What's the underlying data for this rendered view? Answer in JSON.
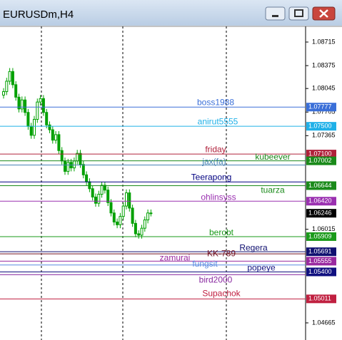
{
  "chart_data": {
    "type": "candlestick",
    "title": "EURUSDm,H4",
    "ylim": [
      1.04418,
      1.08941
    ],
    "yticks": [
      1.08715,
      1.08375,
      1.08045,
      1.07705,
      1.07365,
      1.06015,
      1.04665
    ],
    "up_color": "#00a000",
    "open": [
      1.0795,
      1.08,
      1.0815,
      1.0829,
      1.081,
      1.0792,
      1.0775,
      1.0788,
      1.077,
      1.075,
      1.0737,
      1.076,
      1.0785,
      1.079,
      1.077,
      1.0752,
      1.0745,
      1.073,
      1.0738,
      1.0715,
      1.07,
      1.0685,
      1.0698,
      1.069,
      1.07,
      1.0711,
      1.0695,
      1.068,
      1.067,
      1.066,
      1.0648,
      1.0639,
      1.0652,
      1.0665,
      1.0658,
      1.064,
      1.0625,
      1.0612,
      1.0608,
      1.062,
      1.0635,
      1.0654,
      1.0632,
      1.061,
      1.0595,
      1.0593,
      1.0603,
      1.0615,
      1.0625
    ],
    "high": [
      1.0805,
      1.082,
      1.0834,
      1.0834,
      1.0815,
      1.0797,
      1.0793,
      1.0793,
      1.0775,
      1.0755,
      1.0765,
      1.079,
      1.0795,
      1.0795,
      1.0775,
      1.0757,
      1.075,
      1.0743,
      1.0743,
      1.072,
      1.0705,
      1.0703,
      1.0703,
      1.0705,
      1.0716,
      1.0716,
      1.07,
      1.0685,
      1.0675,
      1.0665,
      1.0653,
      1.0657,
      1.067,
      1.067,
      1.0663,
      1.0645,
      1.063,
      1.0617,
      1.0625,
      1.064,
      1.0659,
      1.0659,
      1.0637,
      1.0615,
      1.06,
      1.0608,
      1.062,
      1.063,
      1.063
    ],
    "low": [
      1.079,
      1.0795,
      1.081,
      1.0805,
      1.0787,
      1.077,
      1.077,
      1.0765,
      1.0745,
      1.0732,
      1.0732,
      1.0755,
      1.078,
      1.0765,
      1.0747,
      1.074,
      1.0725,
      1.0725,
      1.071,
      1.0695,
      1.068,
      1.068,
      1.0685,
      1.0685,
      1.0695,
      1.069,
      1.0675,
      1.0665,
      1.0655,
      1.0643,
      1.0634,
      1.0634,
      1.0647,
      1.0653,
      1.0635,
      1.062,
      1.0607,
      1.0603,
      1.0603,
      1.0615,
      1.063,
      1.0627,
      1.0605,
      1.059,
      1.0588,
      1.0588,
      1.0598,
      1.061,
      1.062
    ],
    "close": [
      1.08,
      1.0815,
      1.0829,
      1.081,
      1.0792,
      1.0775,
      1.0788,
      1.077,
      1.075,
      1.0737,
      1.076,
      1.0785,
      1.079,
      1.077,
      1.0752,
      1.0745,
      1.073,
      1.0738,
      1.0715,
      1.07,
      1.0685,
      1.0698,
      1.069,
      1.07,
      1.0711,
      1.0695,
      1.068,
      1.067,
      1.066,
      1.0648,
      1.0639,
      1.0652,
      1.0665,
      1.0658,
      1.064,
      1.0625,
      1.0612,
      1.0608,
      1.062,
      1.0635,
      1.0654,
      1.0632,
      1.061,
      1.0595,
      1.0593,
      1.0603,
      1.0615,
      1.0625,
      1.06246
    ],
    "lines": [
      {
        "name": "boss1988",
        "color": "#3a6fd8",
        "value": 1.07777,
        "label": "1.07777"
      },
      {
        "name": "anirut5555",
        "color": "#1fb0e8",
        "value": 1.075,
        "label": "1.07500"
      },
      {
        "name": "friday",
        "color": "#b0203a",
        "value": 1.071,
        "label": "1.07100"
      },
      {
        "name": "kubeever",
        "color": "#1a8a1a",
        "value": 1.07002,
        "label": "1.07002"
      },
      {
        "name": "jax(fa)",
        "color": "#4682b4",
        "value": 1.06942
      },
      {
        "name": "Teerapong",
        "color": "#000080",
        "value": 1.06697
      },
      {
        "name": "tuarza",
        "color": "#1a8a1a",
        "value": 1.06644,
        "label": "1.06644"
      },
      {
        "name": "ohlinsyss",
        "color": "#9a30b0",
        "value": 1.0642,
        "label": "1.06420"
      },
      {
        "name": "berobt",
        "color": "#1a9a1a",
        "value": 1.05909,
        "label": "1.05909"
      },
      {
        "name": "Regera",
        "color": "#101070",
        "value": 1.05691,
        "label": "1.05691"
      },
      {
        "name": "KK-789",
        "color": "#701020",
        "value": 1.0566
      },
      {
        "name": "zamurai",
        "color": "#9a2aa0",
        "value": 1.05555,
        "label": "1.05555"
      },
      {
        "name": "fungsit",
        "color": "#5a8ae0",
        "value": 1.055
      },
      {
        "name": "popeye",
        "color": "#101080",
        "value": 1.054,
        "label": "1.05400"
      },
      {
        "name": "bird2000",
        "color": "#8a2aa0",
        "value": 1.0536
      },
      {
        "name": "Supachok",
        "color": "#c02040",
        "value": 1.05011,
        "label": "1.05011"
      }
    ],
    "current_price": {
      "value": 1.06246,
      "label": "1.06246"
    }
  }
}
